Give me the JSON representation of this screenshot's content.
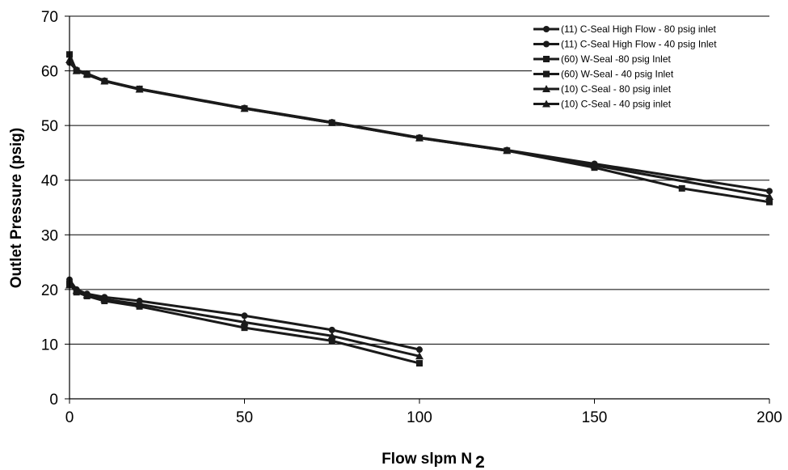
{
  "chart_data": {
    "type": "line",
    "title": "",
    "xlabel": "Flow slpm N",
    "xlabel_subscript": "2",
    "ylabel": "Outlet Pressure (psig)",
    "xlim": [
      0,
      200
    ],
    "ylim": [
      0,
      70
    ],
    "xticks": [
      0,
      50,
      100,
      150,
      200
    ],
    "yticks": [
      0,
      10,
      20,
      30,
      40,
      50,
      60,
      70
    ],
    "grid": "horizontal",
    "legend_position": "top-right",
    "line_color": "#1a1a1a",
    "series": [
      {
        "name": "(11) C-Seal High Flow - 80 psig inlet",
        "marker": "circle",
        "x": [
          0,
          2,
          5,
          10,
          20,
          50,
          75,
          100,
          125,
          150,
          200
        ],
        "y": [
          61.5,
          60.2,
          59.5,
          58.2,
          56.7,
          53.2,
          50.6,
          47.8,
          45.5,
          43.0,
          38.0
        ]
      },
      {
        "name": "(11) C-Seal High Flow - 40 psig Inlet",
        "marker": "circle",
        "x": [
          0,
          2,
          5,
          10,
          20,
          50,
          75,
          100
        ],
        "y": [
          21.8,
          20.0,
          19.2,
          18.6,
          17.9,
          15.2,
          12.6,
          9.0
        ]
      },
      {
        "name": "(60) W-Seal -80 psig Inlet",
        "marker": "square",
        "x": [
          0,
          2,
          5,
          10,
          20,
          50,
          75,
          100,
          125,
          150,
          175,
          200
        ],
        "y": [
          63.0,
          60.0,
          59.3,
          58.1,
          56.7,
          53.1,
          50.5,
          47.7,
          45.4,
          42.3,
          38.5,
          36.0
        ]
      },
      {
        "name": "(60) W-Seal - 40 psig Inlet",
        "marker": "square",
        "x": [
          0,
          2,
          5,
          10,
          20,
          50,
          75,
          100
        ],
        "y": [
          21.0,
          19.5,
          18.8,
          17.9,
          16.9,
          13.0,
          10.6,
          6.5
        ]
      },
      {
        "name": "(10) C-Seal - 80 psig inlet",
        "marker": "triangle",
        "x": [
          0,
          2,
          5,
          10,
          20,
          50,
          75,
          100,
          125,
          150,
          200
        ],
        "y": [
          62.0,
          60.0,
          59.4,
          58.1,
          56.6,
          53.1,
          50.5,
          47.7,
          45.4,
          42.7,
          37.0
        ]
      },
      {
        "name": "(10) C-Seal - 40 psig inlet",
        "marker": "triangle",
        "x": [
          0,
          2,
          5,
          10,
          20,
          50,
          75,
          100
        ],
        "y": [
          20.8,
          19.8,
          19.0,
          18.2,
          17.3,
          14.0,
          11.5,
          7.8
        ]
      }
    ]
  }
}
